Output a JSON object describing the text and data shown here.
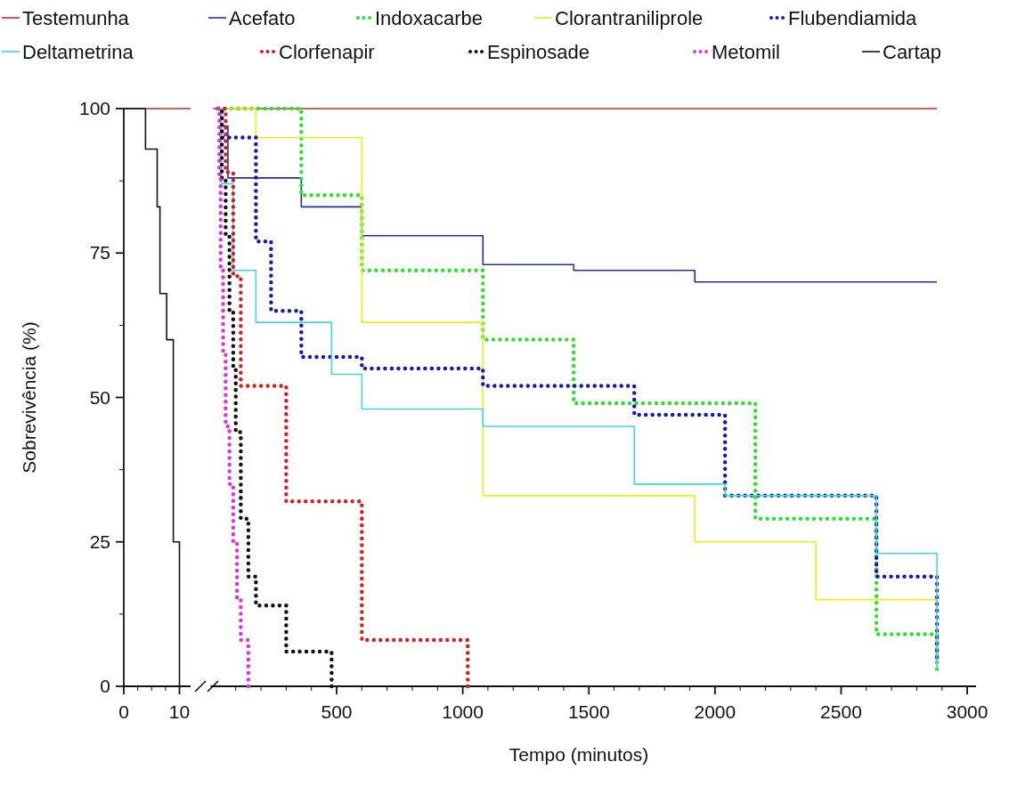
{
  "chart_data": [
    {
      "type": "step",
      "ylabel": "Sobrevivência (%)",
      "xlim": [
        0,
        12
      ],
      "xticks": [
        0,
        {
          "value": 2.5,
          "label": null
        },
        {
          "value": 5,
          "label": null
        },
        {
          "value": 7.5,
          "label": null
        },
        10
      ],
      "ylim": [
        0,
        100
      ],
      "yticks": [
        0,
        {
          "value": 12.5,
          "label": null
        },
        25,
        {
          "value": 37.5,
          "label": null
        },
        50,
        {
          "value": 62.5,
          "label": null
        },
        75,
        {
          "value": 87.5,
          "label": null
        },
        100
      ],
      "series": [
        {
          "color": "#d42a2a",
          "line_style": "solid",
          "x": [
            0,
            12
          ],
          "values": [
            100,
            100
          ]
        },
        {
          "name": "Cartap",
          "color": "#111111",
          "line_style": "solid",
          "x": [
            0,
            3.9,
            6,
            6.5,
            7.7,
            8.9,
            10
          ],
          "values": [
            100,
            93,
            83,
            68,
            60,
            25,
            0
          ]
        }
      ]
    },
    {
      "type": "step",
      "xlabel": "Tempo (minutos)",
      "tick_labels": "x",
      "legend": "top",
      "xlim": [
        0,
        3035
      ],
      "xticks": [
        {
          "value": 100,
          "label": null
        },
        {
          "value": 200,
          "label": null
        },
        {
          "value": 300,
          "label": null
        },
        {
          "value": 400,
          "label": null
        },
        500,
        {
          "value": 600,
          "label": null
        },
        {
          "value": 700,
          "label": null
        },
        {
          "value": 800,
          "label": null
        },
        {
          "value": 900,
          "label": null
        },
        1000,
        {
          "value": 1100,
          "label": null
        },
        {
          "value": 1200,
          "label": null
        },
        {
          "value": 1300,
          "label": null
        },
        {
          "value": 1400,
          "label": null
        },
        1500,
        {
          "value": 1600,
          "label": null
        },
        {
          "value": 1700,
          "label": null
        },
        {
          "value": 1800,
          "label": null
        },
        {
          "value": 1900,
          "label": null
        },
        2000,
        {
          "value": 2100,
          "label": null
        },
        {
          "value": 2200,
          "label": null
        },
        {
          "value": 2300,
          "label": null
        },
        {
          "value": 2400,
          "label": null
        },
        2500,
        {
          "value": 2600,
          "label": null
        },
        {
          "value": 2700,
          "label": null
        },
        {
          "value": 2800,
          "label": null
        },
        {
          "value": 2900,
          "label": null
        },
        3000
      ],
      "ylim": [
        0,
        100
      ],
      "series": [
        {
          "name": "Testemunha",
          "color": "#d42a2a",
          "line_style": "solid",
          "x": [
            10,
            2880
          ],
          "values": [
            100,
            100
          ]
        },
        {
          "name": "Acefato",
          "color": "#1f2fa8",
          "line_style": "solid",
          "x": [
            30,
            42,
            69,
            360,
            600,
            1080,
            1440,
            1920,
            2880
          ],
          "values": [
            100,
            97,
            88,
            83,
            78,
            73,
            72,
            70,
            70
          ]
        },
        {
          "name": "Indoxacarbe",
          "color": "#33dd33",
          "line_style": "dotted",
          "x": [
            30,
            360,
            600,
            1080,
            1440,
            2160,
            2640,
            2880
          ],
          "values": [
            100,
            85,
            72,
            60,
            49,
            29,
            9,
            3
          ]
        },
        {
          "name": "Clorantraniliprole",
          "color": "#eeee11",
          "line_style": "solid",
          "x": [
            30,
            180,
            600,
            1080,
            1920,
            2400,
            2880
          ],
          "values": [
            100,
            95,
            63,
            33,
            25,
            15,
            3
          ]
        },
        {
          "name": "Flubendiamida",
          "color": "#1a1aa6",
          "line_style": "dotted",
          "x": [
            30,
            45,
            180,
            240,
            360,
            600,
            1080,
            1680,
            2040,
            2640,
            2880
          ],
          "values": [
            100,
            95,
            77,
            65,
            57,
            55,
            52,
            47,
            33,
            19,
            5
          ]
        },
        {
          "name": "Deltametrina",
          "color": "#3dd8e0",
          "line_style": "solid",
          "x": [
            30,
            42,
            90,
            180,
            480,
            600,
            1080,
            1680,
            2040,
            2640,
            2880
          ],
          "values": [
            100,
            87,
            72,
            63,
            54,
            48,
            45,
            35,
            33,
            23,
            3
          ]
        },
        {
          "name": "Clorfenapir",
          "color": "#cc2222",
          "line_style": "dotted",
          "x": [
            30,
            60,
            90,
            120,
            300,
            600,
            1020
          ],
          "values": [
            100,
            89,
            71,
            52,
            32,
            8,
            0
          ]
        },
        {
          "name": "Espinosade",
          "color": "#111111",
          "line_style": "dotted",
          "x": [
            30,
            45,
            60,
            75,
            90,
            100,
            120,
            150,
            180,
            300,
            480
          ],
          "values": [
            100,
            88,
            78,
            65,
            55,
            44,
            29,
            19,
            14,
            6,
            0
          ]
        },
        {
          "name": "Metomil",
          "color": "#dd33dd",
          "line_style": "dotted",
          "x": [
            30,
            35,
            40,
            50,
            60,
            75,
            90,
            105,
            120,
            150
          ],
          "values": [
            100,
            88,
            72,
            58,
            45,
            35,
            25,
            15,
            8,
            0
          ]
        }
      ]
    }
  ]
}
